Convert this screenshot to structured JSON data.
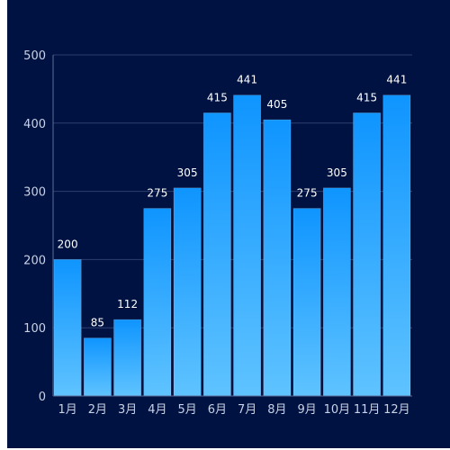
{
  "chart_data": {
    "type": "bar",
    "categories": [
      "1月",
      "2月",
      "3月",
      "4月",
      "5月",
      "6月",
      "7月",
      "8月",
      "9月",
      "10月",
      "11月",
      "12月"
    ],
    "values": [
      200,
      85,
      112,
      275,
      305,
      415,
      441,
      405,
      275,
      305,
      415,
      441
    ],
    "ylim": [
      0,
      500
    ],
    "yticks": [
      0,
      100,
      200,
      300,
      400,
      500
    ],
    "grid": true,
    "colors": {
      "background": "#001242",
      "bar_top": "#0f95ff",
      "bar_bottom": "#5fc3ff",
      "grid": "#2e3f6e",
      "tick_text": "#c9d2e6",
      "data_label": "#ffffff"
    }
  }
}
